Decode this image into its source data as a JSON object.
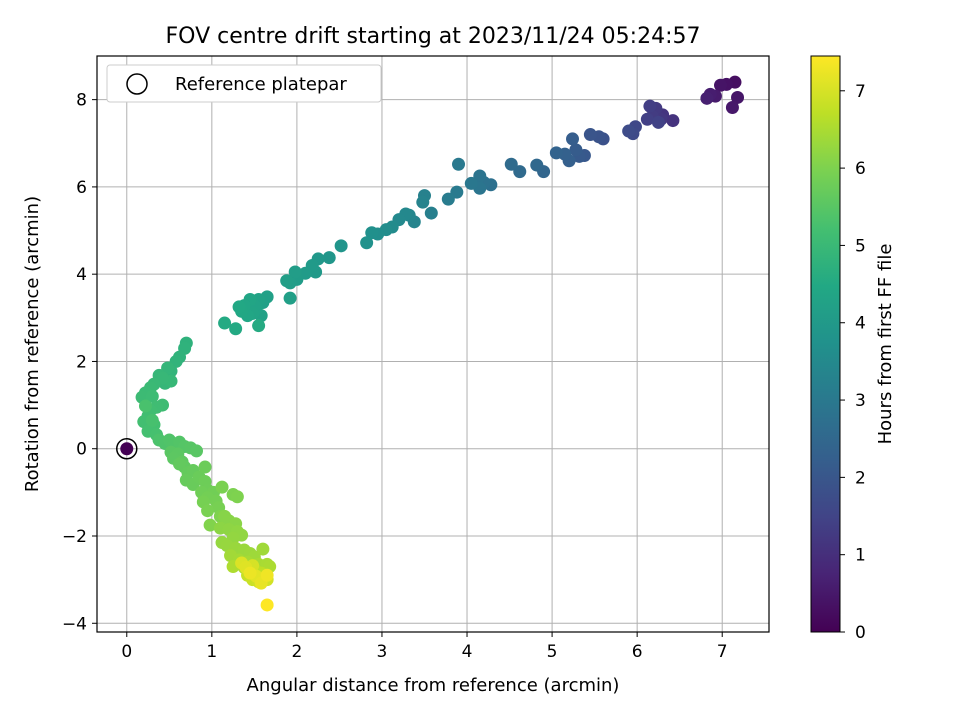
{
  "chart_data": {
    "type": "scatter",
    "title": "FOV centre drift starting at 2023/11/24 05:24:57",
    "xlabel": "Angular distance from reference (arcmin)",
    "ylabel": "Rotation from reference (arcmin)",
    "xlim": [
      -0.35,
      7.55
    ],
    "ylim": [
      -4.2,
      9.0
    ],
    "x_ticks": [
      0,
      1,
      2,
      3,
      4,
      5,
      6,
      7
    ],
    "y_ticks": [
      -4,
      -2,
      0,
      2,
      4,
      6,
      8
    ],
    "grid": true,
    "legend": {
      "position": "top-left",
      "entries": [
        "Reference platepar"
      ]
    },
    "reference_point": {
      "x": 0,
      "y": 0,
      "label": "Reference platepar",
      "marker": "open-circle"
    },
    "colorbar": {
      "label": "Hours from first FF file",
      "colormap": "viridis",
      "range": [
        0,
        7.45
      ],
      "ticks": [
        0,
        1,
        2,
        3,
        4,
        5,
        6,
        7
      ]
    },
    "points_xyc": [
      [
        0.0,
        0.0,
        0.0
      ],
      [
        7.15,
        8.4,
        0.3
      ],
      [
        7.05,
        8.35,
        0.35
      ],
      [
        6.98,
        8.33,
        0.4
      ],
      [
        7.18,
        8.05,
        0.45
      ],
      [
        7.12,
        7.82,
        0.5
      ],
      [
        6.92,
        8.08,
        0.55
      ],
      [
        6.86,
        8.12,
        0.6
      ],
      [
        6.82,
        8.03,
        0.65
      ],
      [
        6.42,
        7.52,
        1.1
      ],
      [
        6.3,
        7.65,
        1.15
      ],
      [
        6.28,
        7.55,
        1.2
      ],
      [
        6.22,
        7.8,
        1.25
      ],
      [
        6.18,
        7.62,
        1.3
      ],
      [
        6.15,
        7.85,
        1.35
      ],
      [
        6.12,
        7.55,
        1.4
      ],
      [
        6.25,
        7.48,
        1.45
      ],
      [
        5.98,
        7.38,
        1.6
      ],
      [
        5.95,
        7.22,
        1.65
      ],
      [
        5.9,
        7.28,
        1.7
      ],
      [
        5.6,
        7.1,
        1.85
      ],
      [
        5.55,
        7.15,
        1.9
      ],
      [
        5.45,
        7.2,
        1.95
      ],
      [
        5.38,
        6.72,
        2.05
      ],
      [
        5.32,
        6.7,
        2.1
      ],
      [
        5.28,
        6.85,
        2.15
      ],
      [
        5.24,
        7.1,
        2.2
      ],
      [
        5.2,
        6.6,
        2.25
      ],
      [
        5.15,
        6.75,
        2.3
      ],
      [
        5.05,
        6.78,
        2.35
      ],
      [
        4.9,
        6.35,
        2.45
      ],
      [
        4.82,
        6.5,
        2.5
      ],
      [
        4.62,
        6.35,
        2.55
      ],
      [
        4.52,
        6.52,
        2.6
      ],
      [
        4.28,
        6.05,
        2.75
      ],
      [
        4.2,
        6.1,
        2.8
      ],
      [
        4.15,
        6.25,
        2.85
      ],
      [
        4.15,
        5.97,
        2.9
      ],
      [
        4.05,
        6.08,
        2.95
      ],
      [
        3.9,
        6.52,
        3.0
      ],
      [
        3.88,
        5.88,
        3.05
      ],
      [
        3.78,
        5.72,
        3.1
      ],
      [
        3.58,
        5.4,
        3.2
      ],
      [
        3.5,
        5.8,
        3.25
      ],
      [
        3.48,
        5.65,
        3.3
      ],
      [
        3.38,
        5.2,
        3.35
      ],
      [
        3.32,
        5.35,
        3.4
      ],
      [
        3.28,
        5.38,
        3.45
      ],
      [
        3.2,
        5.25,
        3.5
      ],
      [
        3.12,
        5.08,
        3.55
      ],
      [
        3.05,
        5.02,
        3.6
      ],
      [
        2.95,
        4.92,
        3.65
      ],
      [
        2.88,
        4.95,
        3.7
      ],
      [
        2.82,
        4.72,
        3.75
      ],
      [
        2.52,
        4.65,
        3.85
      ],
      [
        2.38,
        4.38,
        3.9
      ],
      [
        2.25,
        4.35,
        3.95
      ],
      [
        2.22,
        4.05,
        4.0
      ],
      [
        2.18,
        4.2,
        4.02
      ],
      [
        2.1,
        4.02,
        4.05
      ],
      [
        2.0,
        3.88,
        4.08
      ],
      [
        1.98,
        4.05,
        4.1
      ],
      [
        1.92,
        3.8,
        4.12
      ],
      [
        1.88,
        3.85,
        4.15
      ],
      [
        1.92,
        3.45,
        4.18
      ],
      [
        1.65,
        3.48,
        4.2
      ],
      [
        1.6,
        3.35,
        4.22
      ],
      [
        1.58,
        3.05,
        4.25
      ],
      [
        1.55,
        3.42,
        4.28
      ],
      [
        1.52,
        3.2,
        4.3
      ],
      [
        1.5,
        3.28,
        4.32
      ],
      [
        1.48,
        3.1,
        4.35
      ],
      [
        1.45,
        3.42,
        4.38
      ],
      [
        1.42,
        3.05,
        4.4
      ],
      [
        1.38,
        3.28,
        4.42
      ],
      [
        1.35,
        3.15,
        4.45
      ],
      [
        1.32,
        3.25,
        4.48
      ],
      [
        1.28,
        2.75,
        4.5
      ],
      [
        1.15,
        2.88,
        4.52
      ],
      [
        1.55,
        2.82,
        4.55
      ],
      [
        0.7,
        2.42,
        4.75
      ],
      [
        0.68,
        2.3,
        4.78
      ],
      [
        0.62,
        2.1,
        4.8
      ],
      [
        0.58,
        2.0,
        4.82
      ],
      [
        0.52,
        1.78,
        4.85
      ],
      [
        0.48,
        1.85,
        4.88
      ],
      [
        0.45,
        1.5,
        4.9
      ],
      [
        0.38,
        1.68,
        4.92
      ],
      [
        0.52,
        1.55,
        4.94
      ],
      [
        0.42,
        1.62,
        4.96
      ],
      [
        0.32,
        1.48,
        5.0
      ],
      [
        0.28,
        1.4,
        5.02
      ],
      [
        0.22,
        1.28,
        5.04
      ],
      [
        0.18,
        1.18,
        5.06
      ],
      [
        0.3,
        1.2,
        5.08
      ],
      [
        0.42,
        1.0,
        5.1
      ],
      [
        0.35,
        0.95,
        5.12
      ],
      [
        0.28,
        0.88,
        5.14
      ],
      [
        0.25,
        0.75,
        5.16
      ],
      [
        0.2,
        0.62,
        5.18
      ],
      [
        0.32,
        0.55,
        5.2
      ],
      [
        0.25,
        0.4,
        5.22
      ],
      [
        0.35,
        0.32,
        5.24
      ],
      [
        0.3,
        0.65,
        5.26
      ],
      [
        0.22,
        0.98,
        5.28
      ],
      [
        0.38,
        0.2,
        5.32
      ],
      [
        0.45,
        0.12,
        5.35
      ],
      [
        0.5,
        0.2,
        5.38
      ],
      [
        0.55,
        0.08,
        5.4
      ],
      [
        0.62,
        0.15,
        5.42
      ],
      [
        0.68,
        0.05,
        5.45
      ],
      [
        0.75,
        0.02,
        5.48
      ],
      [
        0.82,
        -0.05,
        5.5
      ],
      [
        0.52,
        -0.08,
        5.52
      ],
      [
        0.6,
        -0.12,
        5.54
      ],
      [
        0.55,
        -0.22,
        5.56
      ],
      [
        0.65,
        -0.3,
        5.6
      ],
      [
        0.68,
        -0.42,
        5.62
      ],
      [
        0.62,
        -0.35,
        5.64
      ],
      [
        0.72,
        -0.55,
        5.66
      ],
      [
        0.78,
        -0.5,
        5.68
      ],
      [
        0.7,
        -0.72,
        5.7
      ],
      [
        0.78,
        -0.82,
        5.72
      ],
      [
        0.85,
        -0.65,
        5.74
      ],
      [
        0.92,
        -0.42,
        5.76
      ],
      [
        0.92,
        -0.75,
        5.78
      ],
      [
        0.95,
        -0.95,
        5.8
      ],
      [
        0.88,
        -1.0,
        5.82
      ],
      [
        1.02,
        -1.0,
        5.84
      ],
      [
        0.95,
        -1.12,
        5.86
      ],
      [
        1.05,
        -1.2,
        5.88
      ],
      [
        0.9,
        -1.22,
        5.9
      ],
      [
        1.08,
        -1.35,
        5.92
      ],
      [
        0.95,
        -1.42,
        5.94
      ],
      [
        1.12,
        -0.88,
        5.96
      ],
      [
        1.25,
        -1.05,
        5.98
      ],
      [
        1.3,
        -1.1,
        6.0
      ],
      [
        1.1,
        -1.55,
        6.02
      ],
      [
        0.98,
        -1.75,
        6.04
      ],
      [
        1.15,
        -1.55,
        6.1
      ],
      [
        1.2,
        -1.65,
        6.12
      ],
      [
        1.28,
        -1.72,
        6.14
      ],
      [
        1.1,
        -1.82,
        6.16
      ],
      [
        1.2,
        -1.85,
        6.18
      ],
      [
        1.3,
        -1.9,
        6.2
      ],
      [
        1.35,
        -1.98,
        6.22
      ],
      [
        1.25,
        -2.05,
        6.24
      ],
      [
        1.12,
        -2.15,
        6.26
      ],
      [
        1.18,
        -2.22,
        6.28
      ],
      [
        1.28,
        -2.28,
        6.3
      ],
      [
        1.38,
        -2.32,
        6.32
      ],
      [
        1.45,
        -2.4,
        6.34
      ],
      [
        1.5,
        -2.48,
        6.36
      ],
      [
        1.6,
        -2.3,
        6.38
      ],
      [
        1.22,
        -2.45,
        6.4
      ],
      [
        1.32,
        -2.55,
        6.42
      ],
      [
        1.42,
        -2.6,
        6.44
      ],
      [
        1.55,
        -2.65,
        6.46
      ],
      [
        1.65,
        -2.65,
        6.48
      ],
      [
        1.68,
        -2.7,
        6.5
      ],
      [
        1.38,
        -2.72,
        6.52
      ],
      [
        1.25,
        -2.7,
        6.54
      ],
      [
        1.45,
        -2.75,
        6.6
      ],
      [
        1.52,
        -2.8,
        6.65
      ],
      [
        1.58,
        -2.85,
        6.7
      ],
      [
        1.6,
        -2.9,
        6.75
      ],
      [
        1.42,
        -2.9,
        6.8
      ],
      [
        1.48,
        -3.0,
        6.85
      ],
      [
        1.55,
        -3.05,
        6.9
      ],
      [
        1.65,
        -3.0,
        6.95
      ],
      [
        1.48,
        -2.68,
        7.0
      ],
      [
        1.35,
        -2.62,
        7.05
      ],
      [
        1.4,
        -2.72,
        7.1
      ],
      [
        1.52,
        -2.92,
        7.15
      ],
      [
        1.58,
        -3.08,
        7.2
      ],
      [
        1.45,
        -2.85,
        7.25
      ],
      [
        1.65,
        -2.9,
        7.3
      ],
      [
        1.65,
        -3.58,
        7.45
      ]
    ]
  }
}
